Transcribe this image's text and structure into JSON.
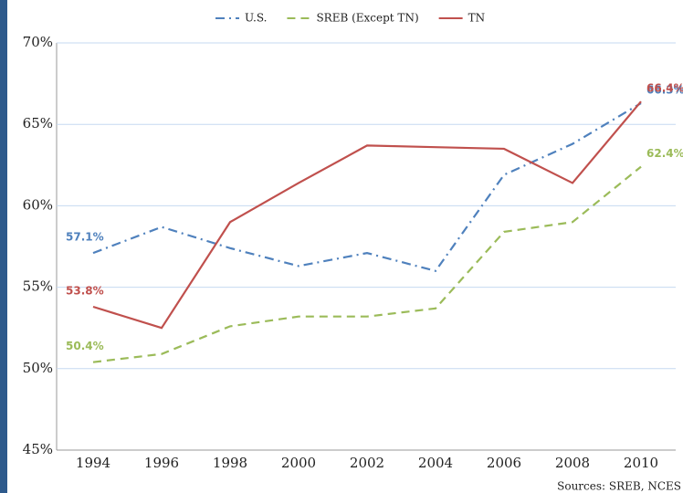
{
  "chart_data": {
    "type": "line",
    "categories": [
      "1994",
      "1996",
      "1998",
      "2000",
      "2002",
      "2004",
      "2006",
      "2008",
      "2010"
    ],
    "series": [
      {
        "name": "U.S.",
        "color": "#4f81bd",
        "style": "dashdot",
        "values": [
          57.1,
          58.7,
          57.4,
          56.3,
          57.1,
          56.0,
          61.9,
          63.8,
          66.3
        ],
        "value_labels": [
          "57.1%",
          null,
          null,
          null,
          null,
          null,
          null,
          null,
          "66.3%"
        ]
      },
      {
        "name": "SREB (Except TN)",
        "color": "#9bbb59",
        "style": "dash",
        "values": [
          50.4,
          50.9,
          52.6,
          53.2,
          53.2,
          53.7,
          58.4,
          59.0,
          62.4
        ],
        "value_labels": [
          "50.4%",
          null,
          null,
          null,
          null,
          null,
          null,
          null,
          "62.4%"
        ]
      },
      {
        "name": "TN",
        "color": "#c0504d",
        "style": "solid",
        "values": [
          53.8,
          52.5,
          59.0,
          61.4,
          63.7,
          63.6,
          63.5,
          61.4,
          66.4
        ],
        "value_labels": [
          "53.8%",
          null,
          null,
          null,
          null,
          null,
          null,
          null,
          "66.4%"
        ]
      }
    ],
    "ylim": [
      45,
      70
    ],
    "yticks": [
      {
        "value": 45,
        "label": "45%"
      },
      {
        "value": 50,
        "label": "50%"
      },
      {
        "value": 55,
        "label": "55%"
      },
      {
        "value": 60,
        "label": "60%"
      },
      {
        "value": 65,
        "label": "65%"
      },
      {
        "value": 70,
        "label": "70%"
      }
    ],
    "grid": true,
    "legend": "top",
    "source": "Sources: SREB, NCES"
  }
}
